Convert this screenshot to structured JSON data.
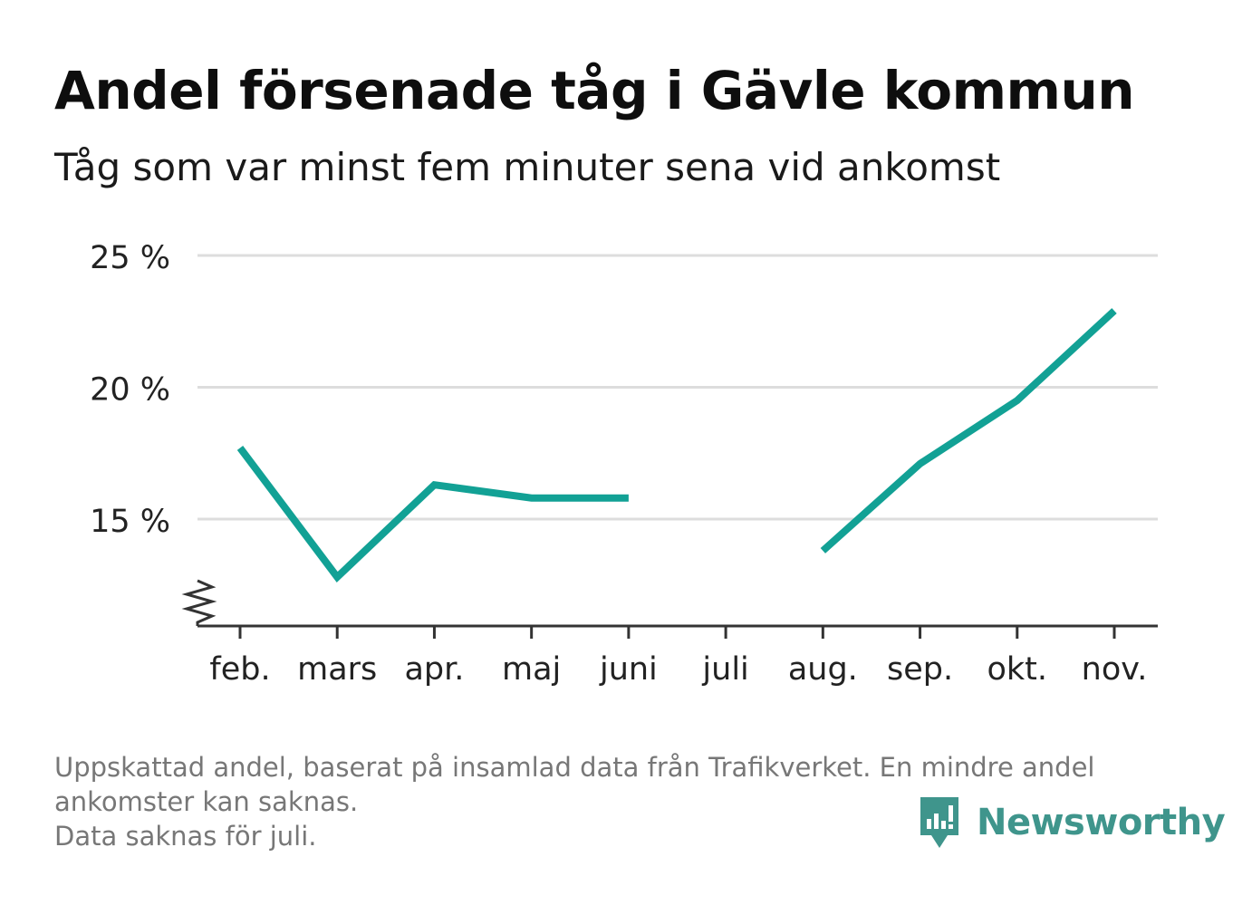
{
  "header": {
    "title": "Andel försenade tåg i Gävle kommun",
    "subtitle": "Tåg som var minst fem minuter sena vid ankomst"
  },
  "chart_data": {
    "type": "line",
    "title": "Andel försenade tåg i Gävle kommun",
    "subtitle": "Tåg som var minst fem minuter sena vid ankomst",
    "xlabel": "",
    "ylabel": "",
    "categories": [
      "feb.",
      "mars",
      "apr.",
      "maj",
      "juni",
      "juli",
      "aug.",
      "sep.",
      "okt.",
      "nov."
    ],
    "series": [
      {
        "values": [
          17.7,
          12.8,
          16.3,
          15.8,
          15.8,
          null,
          13.8,
          17.1,
          19.5,
          22.9
        ]
      }
    ],
    "ylim": [
      11,
      25
    ],
    "yticks": [
      15,
      20,
      25
    ],
    "ytick_labels": [
      "15 %",
      "20 %",
      "25 %"
    ],
    "axis_break": true,
    "grid": true,
    "legend": "none",
    "colors": {
      "line": "#12a195",
      "grid": "#dddddd",
      "axis": "#333333",
      "tick_label": "#222222"
    }
  },
  "footer": {
    "note_line1": "Uppskattad andel, baserat på insamlad data från Trafikverket. En mindre andel",
    "note_line2": "ankomster kan saknas.",
    "note_line3": "Data saknas för juli.",
    "brand": "Newsworthy",
    "brand_icon": "newsworthy-logo-icon",
    "brand_color": "#3f958c"
  }
}
